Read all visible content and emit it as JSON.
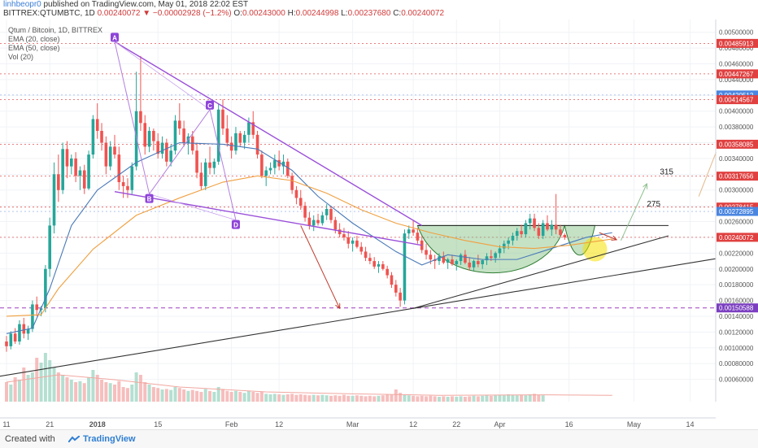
{
  "header": {
    "user": "linhbeopr0",
    "published_text": "published on TradingView.com, May 01, 2018 22:02 EST",
    "symbol": "BITTREX:QTUMBTC, 1D",
    "last": "0.00240072",
    "change": "▼ −0.00002928 (−1.2%)",
    "o_label": "O:",
    "o": "0.00243000",
    "h_label": "H:",
    "h": "0.00244998",
    "l_label": "L:",
    "l": "0.00237680",
    "c_label": "C:",
    "c": "0.00240072"
  },
  "legend": {
    "title": "Qtum / Bitcoin, 1D, BITTREX",
    "ema20": "EMA (20, close)",
    "ema50": "EMA (50, close)",
    "vol": "Vol (20)"
  },
  "footer": {
    "created_with": "Created with",
    "brand": "TradingView"
  },
  "colors": {
    "up": "#26a69a",
    "down": "#ef5350",
    "ema20": "#4a7ab8",
    "ema50": "#f0a040",
    "pattern": "#9a4fd9",
    "cup": "#2e7d32",
    "hline": "#e04040",
    "support": "#333333",
    "arrow_red": "#c0392b",
    "arrow_green": "#8fbf8f",
    "dash_purple": "#a040c0",
    "highlight": "#f5e000"
  },
  "annotations": {
    "labels": [
      "A",
      "B",
      "C",
      "D"
    ],
    "targets": [
      "315",
      "275"
    ]
  },
  "chart_data": {
    "type": "candlestick",
    "title": "Qtum / Bitcoin, 1D, BITTREX",
    "y_axis": {
      "ylim": [
        0.0004,
        0.0051
      ],
      "ticks": [
        "0.00500000",
        "0.00480000",
        "0.00460000",
        "0.00440000",
        "0.00420000",
        "0.00400000",
        "0.00380000",
        "0.00360000",
        "0.00340000",
        "0.00320000",
        "0.00300000",
        "0.00280000",
        "0.00260000",
        "0.00240000",
        "0.00220000",
        "0.00200000",
        "0.00180000",
        "0.00160000",
        "0.00140000",
        "0.00120000",
        "0.00100000",
        "0.00080000",
        "0.00060000"
      ],
      "tick_values": [
        0.005,
        0.0048,
        0.0046,
        0.0044,
        0.0042,
        0.004,
        0.0038,
        0.0036,
        0.0034,
        0.0032,
        0.003,
        0.0028,
        0.0026,
        0.0024,
        0.0022,
        0.002,
        0.0018,
        0.0016,
        0.0014,
        0.0012,
        0.001,
        0.0008,
        0.0006
      ]
    },
    "x_axis": {
      "ticks": [
        "11",
        "21",
        "2018",
        "15",
        "Feb",
        "12",
        "Mar",
        "12",
        "22",
        "Apr",
        "16",
        "May",
        "14"
      ],
      "tick_days": [
        0,
        10,
        21,
        35,
        52,
        63,
        80,
        94,
        104,
        114,
        130,
        145,
        158
      ]
    },
    "price_labels": [
      {
        "text": "0.00485913",
        "value": 0.00485913,
        "color": "#e04040"
      },
      {
        "text": "0.00447267",
        "value": 0.00447267,
        "color": "#e04040"
      },
      {
        "text": "0.00420512",
        "value": 0.00420512,
        "color": "#4a86e0"
      },
      {
        "text": "0.00414567",
        "value": 0.00414567,
        "color": "#e04040"
      },
      {
        "text": "0.00358085",
        "value": 0.00358085,
        "color": "#e04040"
      },
      {
        "text": "0.00317656",
        "value": 0.00317656,
        "color": "#e04040"
      },
      {
        "text": "0.00278415",
        "value": 0.00278415,
        "color": "#e04040"
      },
      {
        "text": "0.00272895",
        "value": 0.00272895,
        "color": "#4a86e0"
      },
      {
        "text": "0.00240072",
        "value": 0.00240072,
        "color": "#e04040"
      },
      {
        "text": "0.00150588",
        "value": 0.00150588,
        "color": "#7b3fc0"
      }
    ],
    "candles": [
      [
        0.00108,
        0.00115,
        0.00095,
        0.00102
      ],
      [
        0.00102,
        0.00121,
        0.00098,
        0.00118
      ],
      [
        0.00118,
        0.00125,
        0.00105,
        0.00108
      ],
      [
        0.00108,
        0.00135,
        0.00104,
        0.0013
      ],
      [
        0.0013,
        0.00138,
        0.00112,
        0.00118
      ],
      [
        0.00118,
        0.00128,
        0.0011,
        0.00124
      ],
      [
        0.00124,
        0.0016,
        0.0012,
        0.00155
      ],
      [
        0.00155,
        0.00165,
        0.0014,
        0.00148
      ],
      [
        0.00148,
        0.00153,
        0.0014,
        0.0015
      ],
      [
        0.0015,
        0.00205,
        0.00145,
        0.002
      ],
      [
        0.002,
        0.00265,
        0.0019,
        0.00255
      ],
      [
        0.00255,
        0.00335,
        0.00245,
        0.0032
      ],
      [
        0.0032,
        0.00345,
        0.00285,
        0.003
      ],
      [
        0.003,
        0.0036,
        0.00295,
        0.00352
      ],
      [
        0.00352,
        0.00362,
        0.00315,
        0.0033
      ],
      [
        0.0033,
        0.00345,
        0.0032,
        0.0034
      ],
      [
        0.0034,
        0.00348,
        0.0031,
        0.00318
      ],
      [
        0.00318,
        0.0033,
        0.003,
        0.00325
      ],
      [
        0.00325,
        0.00332,
        0.00295,
        0.00302
      ],
      [
        0.00302,
        0.0035,
        0.003,
        0.00345
      ],
      [
        0.00345,
        0.00395,
        0.0034,
        0.0039
      ],
      [
        0.0039,
        0.0041,
        0.00365,
        0.00375
      ],
      [
        0.00375,
        0.00385,
        0.0035,
        0.0036
      ],
      [
        0.0036,
        0.00368,
        0.0032,
        0.0033
      ],
      [
        0.0033,
        0.00362,
        0.00325,
        0.00355
      ],
      [
        0.00355,
        0.0037,
        0.0034,
        0.00345
      ],
      [
        0.00345,
        0.00355,
        0.003,
        0.0031
      ],
      [
        0.0031,
        0.00318,
        0.0029,
        0.00305
      ],
      [
        0.00305,
        0.00315,
        0.0029,
        0.003
      ],
      [
        0.003,
        0.00335,
        0.00295,
        0.0033
      ],
      [
        0.0033,
        0.0045,
        0.00325,
        0.004
      ],
      [
        0.004,
        0.0047,
        0.00375,
        0.00385
      ],
      [
        0.00385,
        0.00395,
        0.00345,
        0.00355
      ],
      [
        0.00355,
        0.0038,
        0.00348,
        0.00375
      ],
      [
        0.00375,
        0.00378,
        0.0035,
        0.00362
      ],
      [
        0.00362,
        0.00372,
        0.0034,
        0.00346
      ],
      [
        0.00346,
        0.00368,
        0.0034,
        0.0036
      ],
      [
        0.0036,
        0.00365,
        0.0033,
        0.00336
      ],
      [
        0.00336,
        0.00358,
        0.0033,
        0.0035
      ],
      [
        0.0035,
        0.00395,
        0.00345,
        0.00388
      ],
      [
        0.00388,
        0.0041,
        0.0037,
        0.00378
      ],
      [
        0.00378,
        0.00388,
        0.00355,
        0.0036
      ],
      [
        0.0036,
        0.00372,
        0.00345,
        0.00368
      ],
      [
        0.00368,
        0.00375,
        0.00345,
        0.0035
      ],
      [
        0.0035,
        0.0036,
        0.00315,
        0.00322
      ],
      [
        0.00322,
        0.00335,
        0.003,
        0.00305
      ],
      [
        0.00305,
        0.0034,
        0.003,
        0.00335
      ],
      [
        0.00335,
        0.00355,
        0.0032,
        0.00328
      ],
      [
        0.00328,
        0.0034,
        0.0032,
        0.00336
      ],
      [
        0.00336,
        0.0041,
        0.00332,
        0.00402
      ],
      [
        0.00402,
        0.00415,
        0.0037,
        0.00378
      ],
      [
        0.00378,
        0.00395,
        0.00355,
        0.0036
      ],
      [
        0.0036,
        0.00368,
        0.0034,
        0.0035
      ],
      [
        0.0035,
        0.0038,
        0.00345,
        0.00372
      ],
      [
        0.00372,
        0.00375,
        0.00355,
        0.0036
      ],
      [
        0.0036,
        0.00375,
        0.00352,
        0.0037
      ],
      [
        0.0037,
        0.00392,
        0.0036,
        0.00386
      ],
      [
        0.00386,
        0.004,
        0.00365,
        0.0037
      ],
      [
        0.0037,
        0.00375,
        0.0034,
        0.00345
      ],
      [
        0.00345,
        0.0035,
        0.00315,
        0.00318
      ],
      [
        0.00318,
        0.0033,
        0.00305,
        0.00325
      ],
      [
        0.00325,
        0.00335,
        0.0032,
        0.00328
      ],
      [
        0.00328,
        0.00345,
        0.0032,
        0.00338
      ],
      [
        0.00338,
        0.0035,
        0.00325,
        0.0033
      ],
      [
        0.0033,
        0.00345,
        0.0032,
        0.00336
      ],
      [
        0.00336,
        0.0034,
        0.00315,
        0.00318
      ],
      [
        0.00318,
        0.00322,
        0.00295,
        0.003
      ],
      [
        0.003,
        0.00305,
        0.00282,
        0.0029
      ],
      [
        0.0029,
        0.003,
        0.00275,
        0.0028
      ],
      [
        0.0028,
        0.00285,
        0.0026,
        0.00265
      ],
      [
        0.00265,
        0.00272,
        0.0025,
        0.00255
      ],
      [
        0.00255,
        0.00268,
        0.00248,
        0.00262
      ],
      [
        0.00262,
        0.0027,
        0.00255,
        0.00258
      ],
      [
        0.00258,
        0.00272,
        0.00255,
        0.00268
      ],
      [
        0.00268,
        0.00282,
        0.00262,
        0.00276
      ],
      [
        0.00276,
        0.0028,
        0.00258,
        0.00262
      ],
      [
        0.00262,
        0.00266,
        0.00245,
        0.0025
      ],
      [
        0.0025,
        0.00258,
        0.0024,
        0.00244
      ],
      [
        0.00244,
        0.00252,
        0.00236,
        0.0024
      ],
      [
        0.0024,
        0.00248,
        0.00226,
        0.00232
      ],
      [
        0.00232,
        0.0024,
        0.00222,
        0.00236
      ],
      [
        0.00236,
        0.00242,
        0.00226,
        0.00228
      ],
      [
        0.00228,
        0.00234,
        0.00218,
        0.00222
      ],
      [
        0.00222,
        0.00228,
        0.0021,
        0.00214
      ],
      [
        0.00214,
        0.0022,
        0.00206,
        0.0021
      ],
      [
        0.0021,
        0.00215,
        0.002,
        0.00203
      ],
      [
        0.00203,
        0.0021,
        0.00195,
        0.00206
      ],
      [
        0.00206,
        0.0021,
        0.00198,
        0.002
      ],
      [
        0.002,
        0.00204,
        0.00188,
        0.00192
      ],
      [
        0.00192,
        0.00196,
        0.00176,
        0.0018
      ],
      [
        0.0018,
        0.00186,
        0.00165,
        0.0017
      ],
      [
        0.0017,
        0.00176,
        0.00152,
        0.0016
      ],
      [
        0.0016,
        0.0025,
        0.00155,
        0.00245
      ],
      [
        0.00245,
        0.00255,
        0.00238,
        0.0025
      ],
      [
        0.0025,
        0.00262,
        0.00242,
        0.00246
      ],
      [
        0.00246,
        0.00252,
        0.00232,
        0.00236
      ],
      [
        0.00236,
        0.00242,
        0.0022,
        0.00224
      ],
      [
        0.00224,
        0.00232,
        0.00212,
        0.00218
      ],
      [
        0.00218,
        0.00224,
        0.00206,
        0.00212
      ],
      [
        0.00212,
        0.00218,
        0.002,
        0.0021
      ],
      [
        0.0021,
        0.0022,
        0.00205,
        0.00216
      ],
      [
        0.00216,
        0.00222,
        0.00206,
        0.00208
      ],
      [
        0.00208,
        0.00214,
        0.002,
        0.00212
      ],
      [
        0.00212,
        0.00218,
        0.00204,
        0.00206
      ],
      [
        0.00206,
        0.00212,
        0.00198,
        0.0021
      ],
      [
        0.0021,
        0.0022,
        0.00205,
        0.00218
      ],
      [
        0.00218,
        0.00224,
        0.00206,
        0.00208
      ],
      [
        0.00208,
        0.00215,
        0.00198,
        0.00202
      ],
      [
        0.00202,
        0.00212,
        0.00198,
        0.0021
      ],
      [
        0.0021,
        0.00218,
        0.00202,
        0.00206
      ],
      [
        0.00206,
        0.00212,
        0.002,
        0.00211
      ],
      [
        0.00211,
        0.0022,
        0.00205,
        0.00216
      ],
      [
        0.00216,
        0.00224,
        0.0021,
        0.00214
      ],
      [
        0.00214,
        0.00222,
        0.00208,
        0.0022
      ],
      [
        0.0022,
        0.0023,
        0.00214,
        0.00226
      ],
      [
        0.00226,
        0.00236,
        0.0022,
        0.00232
      ],
      [
        0.00232,
        0.0024,
        0.00225,
        0.00236
      ],
      [
        0.00236,
        0.00246,
        0.0023,
        0.00242
      ],
      [
        0.00242,
        0.00252,
        0.00236,
        0.00248
      ],
      [
        0.00248,
        0.00256,
        0.0024,
        0.00244
      ],
      [
        0.00244,
        0.00262,
        0.0024,
        0.00258
      ],
      [
        0.00258,
        0.0027,
        0.0025,
        0.00264
      ],
      [
        0.00264,
        0.0027,
        0.00248,
        0.00252
      ],
      [
        0.00252,
        0.00258,
        0.00238,
        0.00242
      ],
      [
        0.00242,
        0.00262,
        0.00238,
        0.00258
      ],
      [
        0.00258,
        0.00268,
        0.00248,
        0.0025
      ],
      [
        0.0025,
        0.00262,
        0.00242,
        0.00256
      ],
      [
        0.00256,
        0.00295,
        0.00244,
        0.0025
      ],
      [
        0.0025,
        0.00256,
        0.0024,
        0.00243
      ],
      [
        0.00243,
        0.00245,
        0.00237,
        0.0024
      ]
    ],
    "ema20": [
      [
        0,
        0.00118
      ],
      [
        6,
        0.00125
      ],
      [
        10,
        0.00175
      ],
      [
        15,
        0.00255
      ],
      [
        21,
        0.003
      ],
      [
        30,
        0.00335
      ],
      [
        40,
        0.0036
      ],
      [
        50,
        0.00358
      ],
      [
        58,
        0.00352
      ],
      [
        66,
        0.00325
      ],
      [
        72,
        0.00292
      ],
      [
        80,
        0.00258
      ],
      [
        90,
        0.00222
      ],
      [
        96,
        0.00205
      ],
      [
        102,
        0.00218
      ],
      [
        110,
        0.00212
      ],
      [
        118,
        0.00212
      ],
      [
        126,
        0.00226
      ],
      [
        134,
        0.0024
      ],
      [
        140,
        0.00246
      ]
    ],
    "ema50": [
      [
        0,
        0.0014
      ],
      [
        8,
        0.00142
      ],
      [
        12,
        0.00175
      ],
      [
        20,
        0.00225
      ],
      [
        30,
        0.00268
      ],
      [
        40,
        0.0029
      ],
      [
        50,
        0.0031
      ],
      [
        58,
        0.00318
      ],
      [
        66,
        0.00312
      ],
      [
        74,
        0.00296
      ],
      [
        82,
        0.00275
      ],
      [
        90,
        0.00258
      ],
      [
        98,
        0.00246
      ],
      [
        106,
        0.00236
      ],
      [
        114,
        0.00228
      ],
      [
        122,
        0.00226
      ],
      [
        130,
        0.0023
      ],
      [
        140,
        0.00238
      ]
    ],
    "volume": [
      0.4,
      0.35,
      0.5,
      0.45,
      0.7,
      0.55,
      0.6,
      0.9,
      0.8,
      1.0,
      0.85,
      0.7,
      0.6,
      0.55,
      0.5,
      0.45,
      0.4,
      0.42,
      0.38,
      0.5,
      0.65,
      0.55,
      0.45,
      0.4,
      0.38,
      0.35,
      0.42,
      0.3,
      0.28,
      0.35,
      0.6,
      0.55,
      0.4,
      0.35,
      0.3,
      0.28,
      0.25,
      0.26,
      0.24,
      0.3,
      0.28,
      0.25,
      0.22,
      0.24,
      0.22,
      0.2,
      0.26,
      0.22,
      0.2,
      0.3,
      0.26,
      0.22,
      0.2,
      0.22,
      0.2,
      0.18,
      0.22,
      0.2,
      0.18,
      0.2,
      0.16,
      0.15,
      0.16,
      0.15,
      0.14,
      0.15,
      0.16,
      0.14,
      0.15,
      0.14,
      0.13,
      0.14,
      0.13,
      0.14,
      0.13,
      0.12,
      0.13,
      0.12,
      0.14,
      0.12,
      0.12,
      0.13,
      0.12,
      0.11,
      0.12,
      0.11,
      0.12,
      0.13,
      0.15,
      0.14,
      0.25,
      0.18,
      0.15,
      0.13,
      0.12,
      0.11,
      0.12,
      0.11,
      0.12,
      0.11,
      0.1,
      0.11,
      0.1,
      0.11,
      0.1,
      0.11,
      0.1,
      0.11,
      0.12,
      0.11,
      0.12,
      0.13,
      0.12,
      0.13,
      0.14,
      0.13,
      0.15,
      0.14,
      0.13,
      0.14,
      0.13,
      0.15,
      0.16,
      0.14,
      0.13
    ],
    "vol_ma": [
      [
        0,
        0.4
      ],
      [
        12,
        0.55
      ],
      [
        25,
        0.45
      ],
      [
        40,
        0.3
      ],
      [
        60,
        0.2
      ],
      [
        80,
        0.16
      ],
      [
        100,
        0.13
      ],
      [
        125,
        0.14
      ],
      [
        140,
        0.13
      ]
    ],
    "pattern_points": {
      "A": [
        25,
        0.00488
      ],
      "B": [
        33,
        0.00295
      ],
      "C": [
        47,
        0.00402
      ],
      "D": [
        53,
        0.00262
      ]
    }
  }
}
